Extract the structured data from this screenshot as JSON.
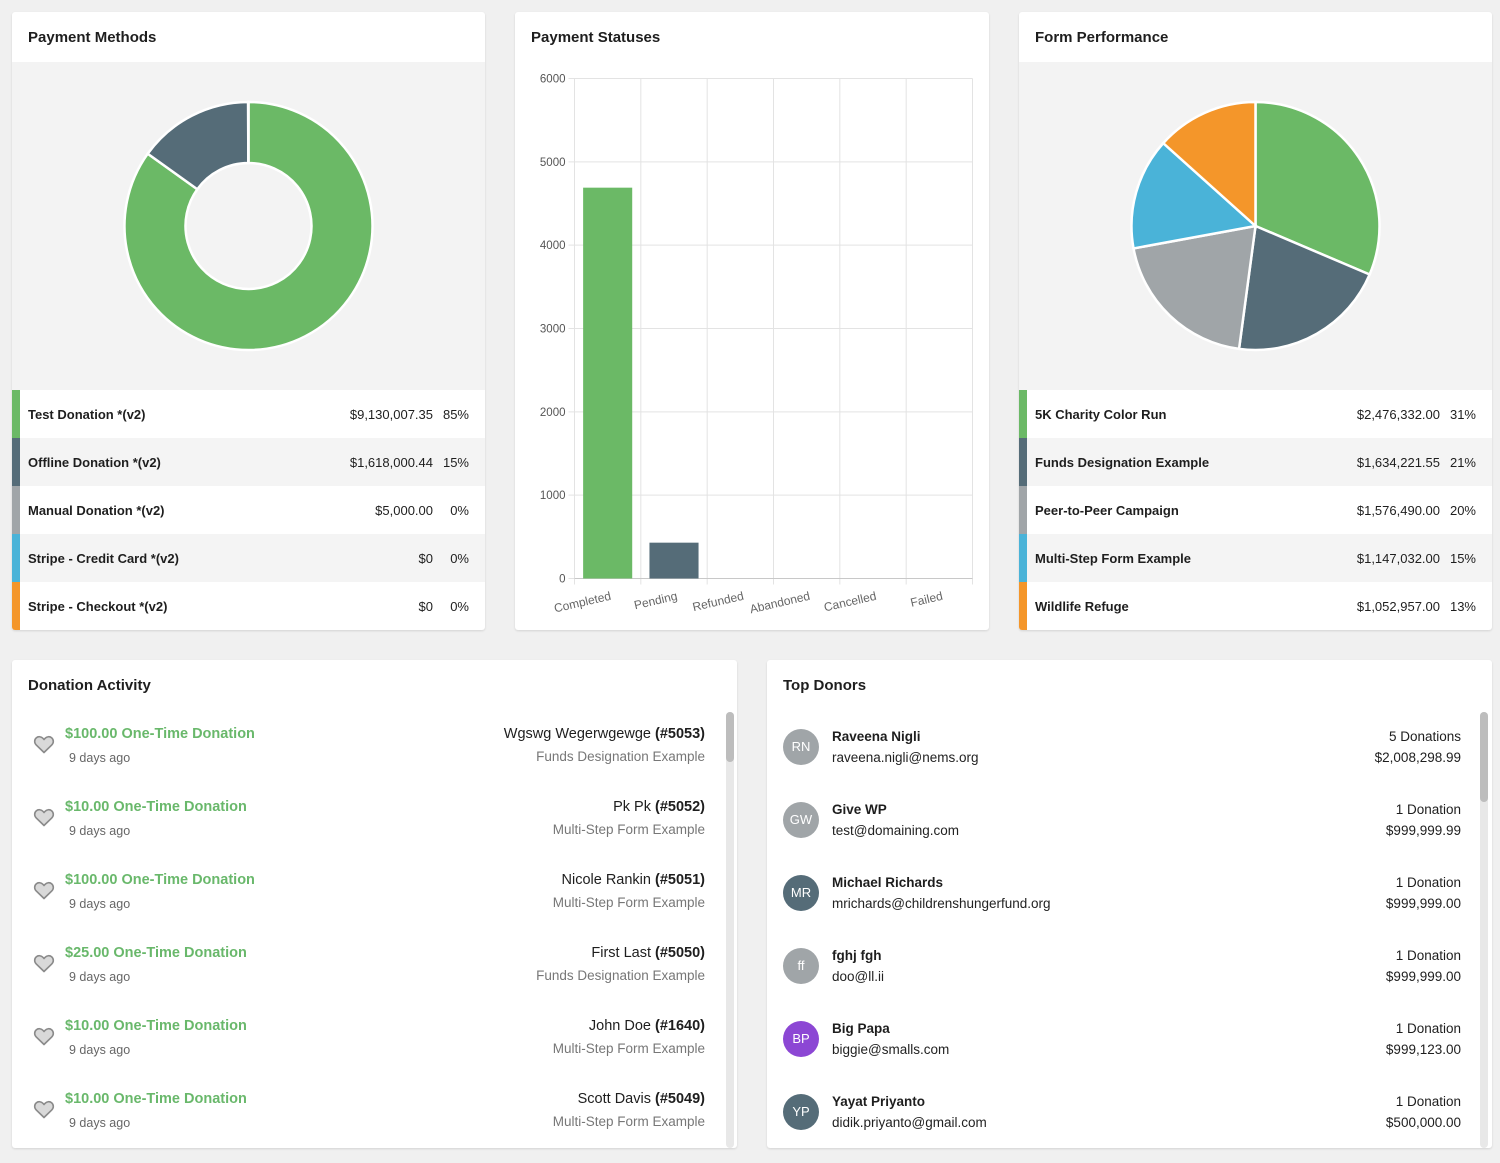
{
  "colors": {
    "green": "#6bb966",
    "slate": "#556c78",
    "gray": "#a0a5a8",
    "blue": "#4ab3d8",
    "orange": "#f4962a",
    "purple": "#8c47d4"
  },
  "payment_methods": {
    "title": "Payment Methods",
    "chart_data": {
      "type": "pie",
      "variant": "donut",
      "categories": [
        "Test Donation *(v2)",
        "Offline Donation *(v2)",
        "Manual Donation *(v2)",
        "Stripe - Credit Card *(v2)",
        "Stripe - Checkout *(v2)"
      ],
      "values": [
        9130007.35,
        1618000.44,
        5000.0,
        0,
        0
      ],
      "colors": [
        "#6bb966",
        "#556c78",
        "#a0a5a8",
        "#4ab3d8",
        "#f4962a"
      ]
    },
    "rows": [
      {
        "label": "Test Donation *(v2)",
        "amount": "$9,130,007.35",
        "pct": "85%",
        "color": "#6bb966"
      },
      {
        "label": "Offline Donation *(v2)",
        "amount": "$1,618,000.44",
        "pct": "15%",
        "color": "#556c78"
      },
      {
        "label": "Manual Donation *(v2)",
        "amount": "$5,000.00",
        "pct": "0%",
        "color": "#a0a5a8"
      },
      {
        "label": "Stripe - Credit Card *(v2)",
        "amount": "$0",
        "pct": "0%",
        "color": "#4ab3d8"
      },
      {
        "label": "Stripe - Checkout *(v2)",
        "amount": "$0",
        "pct": "0%",
        "color": "#f4962a"
      }
    ]
  },
  "payment_statuses": {
    "title": "Payment Statuses",
    "chart_data": {
      "type": "bar",
      "categories": [
        "Completed",
        "Pending",
        "Refunded",
        "Abandoned",
        "Cancelled",
        "Failed"
      ],
      "values": [
        4690,
        430,
        0,
        0,
        0,
        0
      ],
      "colors": [
        "#6bb966",
        "#556c78",
        "#a0a5a8",
        "#4ab3d8",
        "#f4962a",
        "#8c47d4"
      ],
      "ylim": [
        0,
        6000
      ],
      "yticks": [
        "0",
        "1000",
        "2000",
        "3000",
        "4000",
        "5000",
        "6000"
      ],
      "grid": true
    }
  },
  "form_performance": {
    "title": "Form Performance",
    "chart_data": {
      "type": "pie",
      "categories": [
        "5K Charity Color Run",
        "Funds Designation Example",
        "Peer-to-Peer Campaign",
        "Multi-Step Form Example",
        "Wildlife Refuge"
      ],
      "values": [
        2476332.0,
        1634221.55,
        1576490.0,
        1147032.0,
        1052957.0
      ],
      "colors": [
        "#6bb966",
        "#556c78",
        "#a0a5a8",
        "#4ab3d8",
        "#f4962a"
      ]
    },
    "rows": [
      {
        "label": "5K Charity Color Run",
        "amount": "$2,476,332.00",
        "pct": "31%",
        "color": "#6bb966"
      },
      {
        "label": "Funds Designation Example",
        "amount": "$1,634,221.55",
        "pct": "21%",
        "color": "#556c78"
      },
      {
        "label": "Peer-to-Peer Campaign",
        "amount": "$1,576,490.00",
        "pct": "20%",
        "color": "#a0a5a8"
      },
      {
        "label": "Multi-Step Form Example",
        "amount": "$1,147,032.00",
        "pct": "15%",
        "color": "#4ab3d8"
      },
      {
        "label": "Wildlife Refuge",
        "amount": "$1,052,957.00",
        "pct": "13%",
        "color": "#f4962a"
      }
    ]
  },
  "donation_activity": {
    "title": "Donation Activity",
    "items": [
      {
        "title": "$100.00 One-Time Donation",
        "time": "9 days ago",
        "name": "Wgswg Wegerwgewge",
        "id": "(#5053)",
        "form": "Funds Designation Example"
      },
      {
        "title": "$10.00 One-Time Donation",
        "time": "9 days ago",
        "name": "Pk Pk",
        "id": "(#5052)",
        "form": "Multi-Step Form Example"
      },
      {
        "title": "$100.00 One-Time Donation",
        "time": "9 days ago",
        "name": "Nicole Rankin",
        "id": "(#5051)",
        "form": "Multi-Step Form Example"
      },
      {
        "title": "$25.00 One-Time Donation",
        "time": "9 days ago",
        "name": "First Last",
        "id": "(#5050)",
        "form": "Funds Designation Example"
      },
      {
        "title": "$10.00 One-Time Donation",
        "time": "9 days ago",
        "name": "John Doe",
        "id": "(#1640)",
        "form": "Multi-Step Form Example"
      },
      {
        "title": "$10.00 One-Time Donation",
        "time": "9 days ago",
        "name": "Scott Davis",
        "id": "(#5049)",
        "form": "Multi-Step Form Example"
      }
    ]
  },
  "top_donors": {
    "title": "Top Donors",
    "items": [
      {
        "initials": "RN",
        "name": "Raveena Nigli",
        "email": "raveena.nigli@nems.org",
        "count": "5 Donations",
        "total": "$2,008,298.99",
        "color": "#a0a5a8"
      },
      {
        "initials": "GW",
        "name": "Give WP",
        "email": "test@domaining.com",
        "count": "1 Donation",
        "total": "$999,999.99",
        "color": "#a0a5a8"
      },
      {
        "initials": "MR",
        "name": "Michael Richards",
        "email": "mrichards@childrenshungerfund.org",
        "count": "1 Donation",
        "total": "$999,999.00",
        "color": "#556c78"
      },
      {
        "initials": "ff",
        "name": "fghj fgh",
        "email": "doo@ll.ii",
        "count": "1 Donation",
        "total": "$999,999.00",
        "color": "#a0a5a8"
      },
      {
        "initials": "BP",
        "name": "Big Papa",
        "email": "biggie@smalls.com",
        "count": "1 Donation",
        "total": "$999,123.00",
        "color": "#8c47d4"
      },
      {
        "initials": "YP",
        "name": "Yayat Priyanto",
        "email": "didik.priyanto@gmail.com",
        "count": "1 Donation",
        "total": "$500,000.00",
        "color": "#556c78"
      }
    ]
  }
}
